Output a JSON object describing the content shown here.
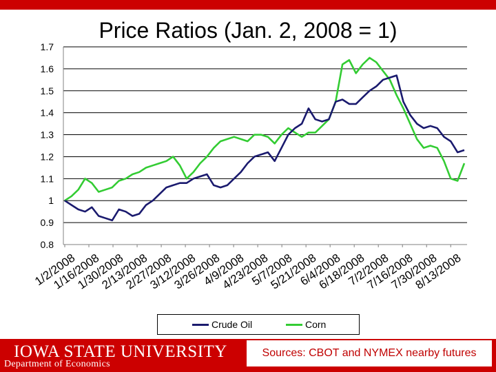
{
  "slide": {
    "university": "IOWA STATE UNIVERSITY",
    "department": "Department of Economics",
    "sources": "Sources: CBOT and NYMEX nearby futures"
  },
  "colors": {
    "bar": "#cc0000",
    "crude": "#1a1a6e",
    "corn": "#33cc33"
  },
  "chart_data": {
    "type": "line",
    "title": "Price Ratios (Jan. 2, 2008 = 1)",
    "xlabel": "",
    "ylabel": "",
    "ylim": [
      0.8,
      1.7
    ],
    "yticks": [
      "0.8",
      "0.9",
      "1",
      "1.1",
      "1.2",
      "1.3",
      "1.4",
      "1.5",
      "1.6",
      "1.7"
    ],
    "xticks": [
      "1/2/2008",
      "1/16/2008",
      "1/30/2008",
      "2/13/2008",
      "2/27/2008",
      "3/12/2008",
      "3/26/2008",
      "4/9/2008",
      "4/23/2008",
      "5/7/2008",
      "5/21/2008",
      "6/4/2008",
      "6/18/2008",
      "7/2/2008",
      "7/16/2008",
      "7/30/2008",
      "8/13/2008"
    ],
    "grid": true,
    "legend": "bottom",
    "series": [
      {
        "name": "Crude Oil",
        "values": [
          1.0,
          0.98,
          0.96,
          0.95,
          0.97,
          0.93,
          0.92,
          0.91,
          0.96,
          0.95,
          0.93,
          0.94,
          0.98,
          1.0,
          1.03,
          1.06,
          1.07,
          1.08,
          1.08,
          1.1,
          1.11,
          1.12,
          1.07,
          1.06,
          1.07,
          1.1,
          1.13,
          1.17,
          1.2,
          1.21,
          1.22,
          1.18,
          1.24,
          1.3,
          1.33,
          1.35,
          1.42,
          1.37,
          1.36,
          1.37,
          1.45,
          1.46,
          1.44,
          1.44,
          1.47,
          1.5,
          1.52,
          1.55,
          1.56,
          1.57,
          1.45,
          1.39,
          1.35,
          1.33,
          1.34,
          1.33,
          1.29,
          1.27,
          1.22,
          1.23
        ]
      },
      {
        "name": "Corn",
        "values": [
          1.0,
          1.02,
          1.05,
          1.1,
          1.08,
          1.04,
          1.05,
          1.06,
          1.09,
          1.1,
          1.12,
          1.13,
          1.15,
          1.16,
          1.17,
          1.18,
          1.2,
          1.16,
          1.1,
          1.13,
          1.17,
          1.2,
          1.24,
          1.27,
          1.28,
          1.29,
          1.28,
          1.27,
          1.3,
          1.3,
          1.29,
          1.26,
          1.3,
          1.33,
          1.31,
          1.29,
          1.31,
          1.31,
          1.34,
          1.37,
          1.45,
          1.62,
          1.64,
          1.58,
          1.62,
          1.65,
          1.63,
          1.59,
          1.55,
          1.48,
          1.42,
          1.35,
          1.28,
          1.24,
          1.25,
          1.24,
          1.18,
          1.1,
          1.09,
          1.17
        ]
      }
    ]
  }
}
